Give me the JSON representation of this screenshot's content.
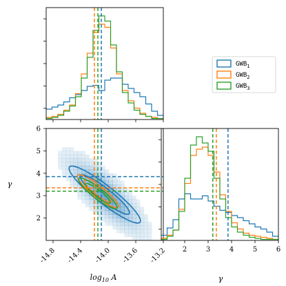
{
  "chart_data": {
    "type": "corner",
    "series": [
      {
        "name": "GWB",
        "sub": "1",
        "color": "#1f77b4",
        "log10A_mark": -14.1,
        "gamma_mark": 3.85,
        "hist_log10A": [
          0.1,
          0.12,
          0.14,
          0.17,
          0.21,
          0.24,
          0.28,
          0.32,
          0.33,
          0.28,
          0.38,
          0.4,
          0.4,
          0.34,
          0.3,
          0.26,
          0.22,
          0.15,
          0.08,
          0.04
        ],
        "hist_gamma": [
          0.05,
          0.12,
          0.2,
          0.4,
          0.45,
          0.4,
          0.4,
          0.43,
          0.38,
          0.33,
          0.29,
          0.27,
          0.24,
          0.22,
          0.19,
          0.16,
          0.13,
          0.11,
          0.08,
          0.04
        ],
        "contour_center": [
          -14.05,
          3.05
        ],
        "contour_radii": [
          [
            0.36,
            0.5
          ],
          [
            0.52,
            0.72
          ]
        ]
      },
      {
        "name": "GWB",
        "sub": "2",
        "color": "#ff7f0e",
        "log10A_mark": -14.2,
        "gamma_mark": 3.35,
        "hist_log10A": [
          0.02,
          0.03,
          0.05,
          0.09,
          0.14,
          0.25,
          0.44,
          0.64,
          0.84,
          0.92,
          0.89,
          0.69,
          0.44,
          0.28,
          0.18,
          0.11,
          0.06,
          0.03,
          0.02,
          0.01
        ],
        "hist_gamma": [
          0.02,
          0.05,
          0.1,
          0.3,
          0.55,
          0.82,
          0.88,
          0.9,
          0.82,
          0.66,
          0.44,
          0.28,
          0.17,
          0.11,
          0.07,
          0.05,
          0.04,
          0.03,
          0.02,
          0.01
        ],
        "contour_center": [
          -14.15,
          3.2
        ],
        "contour_radii": [
          [
            0.2,
            0.3
          ],
          [
            0.3,
            0.45
          ]
        ]
      },
      {
        "name": "GWB",
        "sub": "3",
        "color": "#2ca02c",
        "log10A_mark": -14.15,
        "gamma_mark": 3.2,
        "hist_log10A": [
          0.01,
          0.02,
          0.04,
          0.08,
          0.13,
          0.22,
          0.4,
          0.6,
          0.86,
          1.0,
          0.95,
          0.72,
          0.46,
          0.26,
          0.16,
          0.09,
          0.05,
          0.03,
          0.01,
          0.01
        ],
        "hist_gamma": [
          0.01,
          0.04,
          0.1,
          0.28,
          0.6,
          0.92,
          1.0,
          0.94,
          0.86,
          0.6,
          0.4,
          0.22,
          0.13,
          0.08,
          0.05,
          0.03,
          0.02,
          0.01,
          0.01,
          0.01
        ],
        "contour_center": [
          -14.15,
          3.1
        ],
        "contour_radii": [
          [
            0.18,
            0.28
          ],
          [
            0.28,
            0.42
          ]
        ]
      }
    ],
    "log10A_range": [
      -14.9,
      -13.2
    ],
    "gamma_range": [
      1.0,
      6.0
    ],
    "log10A_ticks": [
      "-14.8",
      "-14.4",
      "-14.0",
      "-13.6",
      "-13.2"
    ],
    "gamma_ticks_left": [
      "2",
      "3",
      "4",
      "5",
      "6"
    ],
    "gamma_ticks_bottom": [
      "2",
      "3",
      "4",
      "5",
      "6"
    ],
    "xlabel": "log",
    "xlabel_sub": "10",
    "xlabel_var": "A",
    "ylabel": "γ",
    "xlabel_gamma": "γ",
    "grid": false,
    "legend_placement": "top-right"
  }
}
